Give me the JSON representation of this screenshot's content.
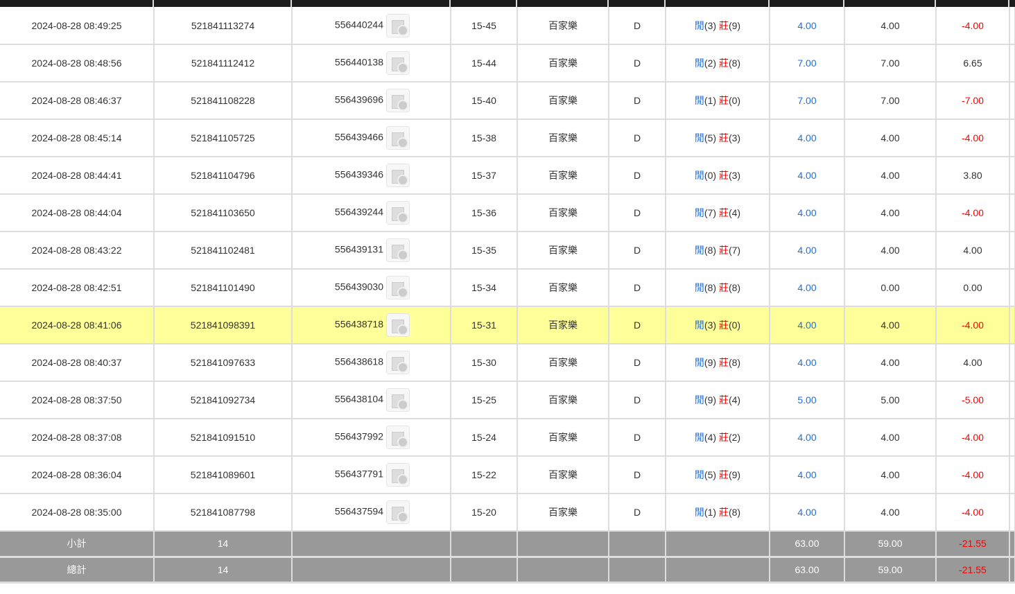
{
  "colors": {
    "header": "#1c1c1c",
    "highlight": "#ffff99",
    "footer": "#999999",
    "banker": "#ff0000",
    "player": "#1e6fe0"
  },
  "rows": [
    {
      "time": "2024-08-28 08:49:25",
      "bet_id": "521841113274",
      "round_id": "556440244",
      "table": "15-45",
      "game": "百家樂",
      "type": "D",
      "p_label": "閒",
      "p": "(3)",
      "b_label": "莊",
      "b": "(9)",
      "bet": "4.00",
      "valid": "4.00",
      "win": "-4.00"
    },
    {
      "time": "2024-08-28 08:48:56",
      "bet_id": "521841112412",
      "round_id": "556440138",
      "table": "15-44",
      "game": "百家樂",
      "type": "D",
      "p_label": "閒",
      "p": "(2)",
      "b_label": "莊",
      "b": "(8)",
      "bet": "7.00",
      "valid": "7.00",
      "win": "6.65"
    },
    {
      "time": "2024-08-28 08:46:37",
      "bet_id": "521841108228",
      "round_id": "556439696",
      "table": "15-40",
      "game": "百家樂",
      "type": "D",
      "p_label": "閒",
      "p": "(1)",
      "b_label": "莊",
      "b": "(0)",
      "bet": "7.00",
      "valid": "7.00",
      "win": "-7.00"
    },
    {
      "time": "2024-08-28 08:45:14",
      "bet_id": "521841105725",
      "round_id": "556439466",
      "table": "15-38",
      "game": "百家樂",
      "type": "D",
      "p_label": "閒",
      "p": "(5)",
      "b_label": "莊",
      "b": "(3)",
      "bet": "4.00",
      "valid": "4.00",
      "win": "-4.00"
    },
    {
      "time": "2024-08-28 08:44:41",
      "bet_id": "521841104796",
      "round_id": "556439346",
      "table": "15-37",
      "game": "百家樂",
      "type": "D",
      "p_label": "閒",
      "p": "(0)",
      "b_label": "莊",
      "b": "(3)",
      "bet": "4.00",
      "valid": "4.00",
      "win": "3.80"
    },
    {
      "time": "2024-08-28 08:44:04",
      "bet_id": "521841103650",
      "round_id": "556439244",
      "table": "15-36",
      "game": "百家樂",
      "type": "D",
      "p_label": "閒",
      "p": "(7)",
      "b_label": "莊",
      "b": "(4)",
      "bet": "4.00",
      "valid": "4.00",
      "win": "-4.00"
    },
    {
      "time": "2024-08-28 08:43:22",
      "bet_id": "521841102481",
      "round_id": "556439131",
      "table": "15-35",
      "game": "百家樂",
      "type": "D",
      "p_label": "閒",
      "p": "(8)",
      "b_label": "莊",
      "b": "(7)",
      "bet": "4.00",
      "valid": "4.00",
      "win": "4.00"
    },
    {
      "time": "2024-08-28 08:42:51",
      "bet_id": "521841101490",
      "round_id": "556439030",
      "table": "15-34",
      "game": "百家樂",
      "type": "D",
      "p_label": "閒",
      "p": "(8)",
      "b_label": "莊",
      "b": "(8)",
      "bet": "4.00",
      "valid": "0.00",
      "win": "0.00"
    },
    {
      "time": "2024-08-28 08:41:06",
      "bet_id": "521841098391",
      "round_id": "556438718",
      "table": "15-31",
      "game": "百家樂",
      "type": "D",
      "p_label": "閒",
      "p": "(3)",
      "b_label": "莊",
      "b": "(0)",
      "bet": "4.00",
      "valid": "4.00",
      "win": "-4.00",
      "highlight": true
    },
    {
      "time": "2024-08-28 08:40:37",
      "bet_id": "521841097633",
      "round_id": "556438618",
      "table": "15-30",
      "game": "百家樂",
      "type": "D",
      "p_label": "閒",
      "p": "(9)",
      "b_label": "莊",
      "b": "(8)",
      "bet": "4.00",
      "valid": "4.00",
      "win": "4.00"
    },
    {
      "time": "2024-08-28 08:37:50",
      "bet_id": "521841092734",
      "round_id": "556438104",
      "table": "15-25",
      "game": "百家樂",
      "type": "D",
      "p_label": "閒",
      "p": "(9)",
      "b_label": "莊",
      "b": "(4)",
      "bet": "5.00",
      "valid": "5.00",
      "win": "-5.00"
    },
    {
      "time": "2024-08-28 08:37:08",
      "bet_id": "521841091510",
      "round_id": "556437992",
      "table": "15-24",
      "game": "百家樂",
      "type": "D",
      "p_label": "閒",
      "p": "(4)",
      "b_label": "莊",
      "b": "(2)",
      "bet": "4.00",
      "valid": "4.00",
      "win": "-4.00"
    },
    {
      "time": "2024-08-28 08:36:04",
      "bet_id": "521841089601",
      "round_id": "556437791",
      "table": "15-22",
      "game": "百家樂",
      "type": "D",
      "p_label": "閒",
      "p": "(5)",
      "b_label": "莊",
      "b": "(9)",
      "bet": "4.00",
      "valid": "4.00",
      "win": "-4.00"
    },
    {
      "time": "2024-08-28 08:35:00",
      "bet_id": "521841087798",
      "round_id": "556437594",
      "table": "15-20",
      "game": "百家樂",
      "type": "D",
      "p_label": "閒",
      "p": "(1)",
      "b_label": "莊",
      "b": "(8)",
      "bet": "4.00",
      "valid": "4.00",
      "win": "-4.00"
    }
  ],
  "subtotal": {
    "label": "小計",
    "count": "14",
    "bet": "63.00",
    "valid": "59.00",
    "win": "-21.55"
  },
  "total": {
    "label": "總計",
    "count": "14",
    "bet": "63.00",
    "valid": "59.00",
    "win": "-21.55"
  }
}
